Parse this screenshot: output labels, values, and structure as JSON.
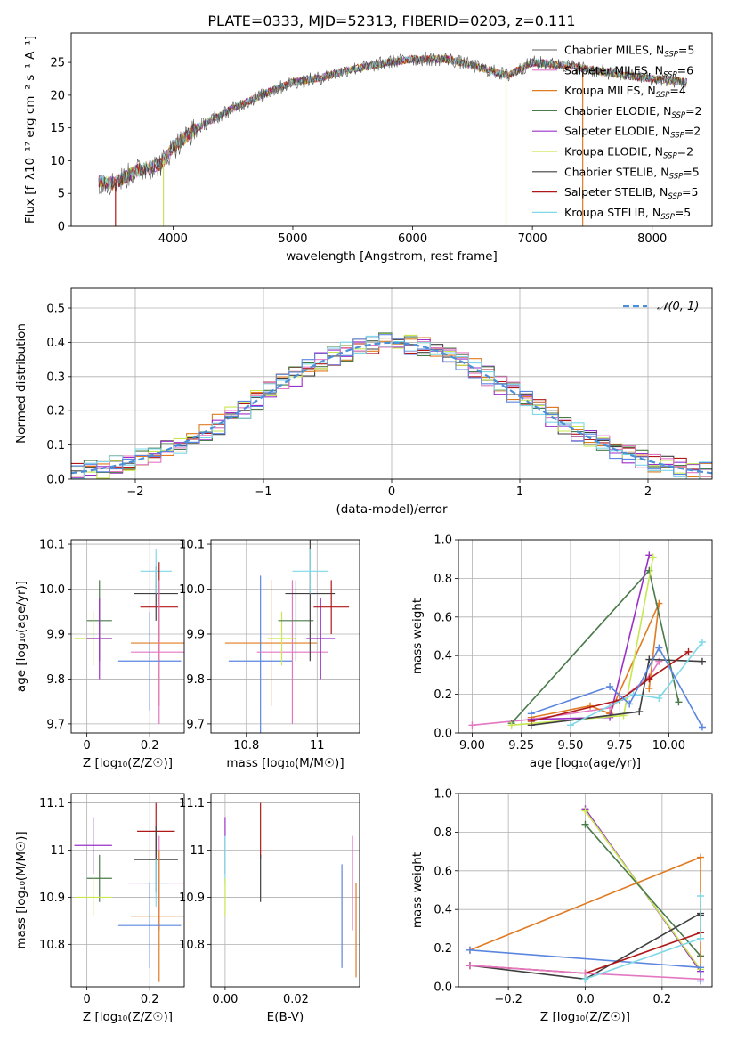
{
  "figure": {
    "title": "PLATE=0333, MJD=52313, FIBERID=0203, z=0.111",
    "colors": {
      "Chabrier MILES": "#808080",
      "Salpeter MILES": "#e377c2",
      "Kroupa MILES": "#e07b22",
      "Chabrier ELODIE": "#4a7a4a",
      "Salpeter ELODIE": "#9b30c8",
      "Kroupa ELODIE": "#c8e650",
      "Chabrier STELIB": "#404040",
      "Salpeter STELIB": "#b01818",
      "Kroupa STELIB": "#7fd8e8",
      "extra": "#5b86e0"
    }
  },
  "chart_data": [
    {
      "id": "spectrum",
      "type": "line",
      "xlabel": "wavelength [Angstrom, rest frame]",
      "ylabel": "Flux [f_λ10⁻¹⁷ erg cm⁻² s⁻¹ A⁻¹]",
      "xlim": [
        3150,
        8500
      ],
      "ylim": [
        0,
        29.5
      ],
      "xticks": [
        4000,
        5000,
        6000,
        7000,
        8000
      ],
      "yticks": [
        0,
        5,
        10,
        15,
        20,
        25
      ],
      "grid": false,
      "legend_position": "right",
      "series": [
        {
          "name": "Chabrier MILES, N_SSP=5",
          "key": "Chabrier MILES"
        },
        {
          "name": "Salpeter MILES, N_SSP=6",
          "key": "Salpeter MILES"
        },
        {
          "name": "Kroupa MILES, N_SSP=4",
          "key": "Kroupa MILES"
        },
        {
          "name": "Chabrier ELODIE, N_SSP=2",
          "key": "Chabrier ELODIE"
        },
        {
          "name": "Salpeter ELODIE, N_SSP=2",
          "key": "Salpeter ELODIE"
        },
        {
          "name": "Kroupa ELODIE, N_SSP=2",
          "key": "Kroupa ELODIE"
        },
        {
          "name": "Chabrier STELIB, N_SSP=5",
          "key": "Chabrier STELIB"
        },
        {
          "name": "Salpeter STELIB, N_SSP=5",
          "key": "Salpeter STELIB"
        },
        {
          "name": "Kroupa STELIB, N_SSP=5",
          "key": "Kroupa STELIB"
        }
      ],
      "continuum": {
        "x": [
          3350,
          3500,
          3700,
          3900,
          4000,
          4200,
          4500,
          4800,
          5000,
          5200,
          5500,
          5800,
          6000,
          6300,
          6500,
          6800,
          7000,
          7300,
          7600,
          8000,
          8300
        ],
        "y": [
          7,
          6.5,
          8.5,
          9.5,
          12,
          15,
          18,
          20.5,
          22,
          22.5,
          24,
          25,
          25.5,
          25.5,
          24.5,
          23,
          25,
          24.5,
          23.5,
          22.5,
          22
        ]
      },
      "drops": [
        {
          "x": 3520,
          "key": "Salpeter STELIB"
        },
        {
          "x": 3920,
          "key": "Kroupa ELODIE"
        },
        {
          "x": 6780,
          "key": "Kroupa ELODIE"
        },
        {
          "x": 7420,
          "key": "Kroupa MILES"
        }
      ]
    },
    {
      "id": "residuals",
      "type": "step",
      "xlabel": "(data-model)/error",
      "ylabel": "Normed distribution",
      "xlim": [
        -2.5,
        2.5
      ],
      "ylim": [
        0,
        0.56
      ],
      "xticks": [
        -2,
        -1,
        0,
        1,
        2
      ],
      "yticks": [
        0.0,
        0.1,
        0.2,
        0.3,
        0.4,
        0.5
      ],
      "grid": true,
      "legend": "𝒩(0, 1)",
      "legend_position": "top-right",
      "bin_width": 0.1
    },
    {
      "id": "age_vs_Z",
      "type": "errorbar",
      "xlabel": "Z [log₁₀(Z/Z☉)]",
      "ylabel": "age  [log₁₀(age/yr)]",
      "xlim": [
        -0.05,
        0.31
      ],
      "ylim": [
        9.68,
        10.11
      ],
      "xticks": [
        0.0,
        0.2
      ],
      "yticks": [
        9.7,
        9.8,
        9.9,
        10.0,
        10.1
      ],
      "grid": true,
      "points": [
        {
          "key": "Chabrier ELODIE",
          "x": 0.04,
          "xerr": 0.04,
          "y": 9.93,
          "yerr": 0.09
        },
        {
          "key": "Kroupa ELODIE",
          "x": 0.02,
          "xerr": 0.06,
          "y": 9.89,
          "yerr": 0.06
        },
        {
          "key": "Salpeter ELODIE",
          "x": 0.04,
          "xerr": 0.04,
          "y": 9.89,
          "yerr": 0.09
        },
        {
          "key": "Chabrier STELIB",
          "x": 0.22,
          "xerr": 0.07,
          "y": 9.99,
          "yerr": 0.06
        },
        {
          "key": "Kroupa STELIB",
          "x": 0.22,
          "xerr": 0.05,
          "y": 10.04,
          "yerr": 0.05
        },
        {
          "key": "Salpeter STELIB",
          "x": 0.23,
          "xerr": 0.06,
          "y": 9.96,
          "yerr": 0.1
        },
        {
          "key": "Kroupa MILES",
          "x": 0.23,
          "xerr": 0.09,
          "y": 9.88,
          "yerr": 0.14
        },
        {
          "key": "Salpeter MILES",
          "x": 0.23,
          "xerr": 0.09,
          "y": 9.86,
          "yerr": 0.16
        },
        {
          "key": "extra",
          "x": 0.2,
          "xerr": 0.1,
          "y": 9.84,
          "yerr": 0.11
        }
      ]
    },
    {
      "id": "age_vs_mass",
      "type": "errorbar",
      "xlabel": "mass [log₁₀(M/M☉)]",
      "ylabel": "",
      "xlim": [
        10.7,
        11.12
      ],
      "ylim": [
        9.68,
        10.11
      ],
      "xticks": [
        10.8,
        11.0
      ],
      "yticks": [
        9.7,
        9.8,
        9.9,
        10.0,
        10.1
      ],
      "grid": true,
      "points": [
        {
          "key": "Kroupa MILES",
          "x": 10.87,
          "xerr": 0.13,
          "y": 9.88,
          "yerr": 0.14
        },
        {
          "key": "extra",
          "x": 10.84,
          "xerr": 0.09,
          "y": 9.84,
          "yerr": 0.19
        },
        {
          "key": "Salpeter MILES",
          "x": 10.93,
          "xerr": 0.1,
          "y": 9.86,
          "yerr": 0.16
        },
        {
          "key": "Kroupa ELODIE",
          "x": 10.9,
          "xerr": 0.04,
          "y": 9.89,
          "yerr": 0.06
        },
        {
          "key": "Chabrier ELODIE",
          "x": 10.94,
          "xerr": 0.05,
          "y": 9.93,
          "yerr": 0.09
        },
        {
          "key": "Chabrier STELIB",
          "x": 10.98,
          "xerr": 0.07,
          "y": 9.99,
          "yerr": 0.15
        },
        {
          "key": "Kroupa STELIB",
          "x": 10.98,
          "xerr": 0.05,
          "y": 10.04,
          "yerr": 0.05
        },
        {
          "key": "Salpeter ELODIE",
          "x": 11.01,
          "xerr": 0.04,
          "y": 9.89,
          "yerr": 0.09
        },
        {
          "key": "Salpeter STELIB",
          "x": 11.04,
          "xerr": 0.05,
          "y": 9.96,
          "yerr": 0.06
        }
      ]
    },
    {
      "id": "weight_vs_age",
      "type": "line",
      "xlabel": "age  [log₁₀(age/yr)]",
      "ylabel": "mass weight",
      "xlim": [
        8.93,
        10.22
      ],
      "ylim": [
        0,
        1
      ],
      "xticks": [
        9.0,
        9.25,
        9.5,
        9.75,
        10.0
      ],
      "xtick_labels": [
        "9.00",
        "9.25",
        "9.50",
        "9.75",
        "10.00"
      ],
      "yticks": [
        0.0,
        0.2,
        0.4,
        0.6,
        0.8,
        1.0
      ],
      "grid": true,
      "series": [
        {
          "key": "Salpeter MILES",
          "x": [
            9.0,
            9.3,
            9.7,
            9.9,
            9.95
          ],
          "y": [
            0.04,
            0.07,
            0.13,
            0.29,
            0.37
          ]
        },
        {
          "key": "Kroupa MILES",
          "x": [
            9.3,
            9.6,
            9.7,
            9.95,
            9.9
          ],
          "y": [
            0.08,
            0.14,
            0.1,
            0.67,
            0.23
          ]
        },
        {
          "key": "Chabrier ELODIE",
          "x": [
            9.2,
            9.9,
            10.05
          ],
          "y": [
            0.05,
            0.84,
            0.16
          ]
        },
        {
          "key": "Salpeter ELODIE",
          "x": [
            9.3,
            9.7,
            9.9
          ],
          "y": [
            0.07,
            0.08,
            0.92
          ]
        },
        {
          "key": "Kroupa ELODIE",
          "x": [
            9.2,
            9.77,
            9.92
          ],
          "y": [
            0.04,
            0.09,
            0.91
          ]
        },
        {
          "key": "Chabrier STELIB",
          "x": [
            9.3,
            9.85,
            9.9,
            10.17
          ],
          "y": [
            0.04,
            0.11,
            0.38,
            0.37
          ]
        },
        {
          "key": "Salpeter STELIB",
          "x": [
            9.3,
            9.75,
            9.9,
            10.1
          ],
          "y": [
            0.06,
            0.17,
            0.28,
            0.42
          ]
        },
        {
          "key": "Kroupa STELIB",
          "x": [
            9.5,
            9.82,
            9.95,
            10.17
          ],
          "y": [
            0.04,
            0.2,
            0.18,
            0.47
          ]
        },
        {
          "key": "extra",
          "x": [
            9.3,
            9.7,
            9.8,
            9.95,
            10.17
          ],
          "y": [
            0.1,
            0.24,
            0.15,
            0.44,
            0.03
          ]
        }
      ]
    },
    {
      "id": "mass_vs_Z",
      "type": "errorbar",
      "xlabel": "Z [log₁₀(Z/Z☉)]",
      "ylabel": "mass [log₁₀(M/M☉)]",
      "xlim": [
        -0.05,
        0.31
      ],
      "ylim": [
        10.71,
        11.12
      ],
      "xticks": [
        0.0,
        0.2
      ],
      "yticks": [
        10.8,
        10.9,
        11.0,
        11.1
      ],
      "grid": true,
      "points": [
        {
          "key": "Salpeter ELODIE",
          "x": 0.02,
          "xerr": 0.06,
          "y": 11.01,
          "yerr": 0.06
        },
        {
          "key": "Chabrier ELODIE",
          "x": 0.04,
          "xerr": 0.04,
          "y": 10.94,
          "yerr": 0.05
        },
        {
          "key": "Kroupa ELODIE",
          "x": 0.02,
          "xerr": 0.06,
          "y": 10.9,
          "yerr": 0.04
        },
        {
          "key": "Salpeter STELIB",
          "x": 0.22,
          "xerr": 0.06,
          "y": 11.04,
          "yerr": 0.06
        },
        {
          "key": "Chabrier STELIB",
          "x": 0.22,
          "xerr": 0.07,
          "y": 10.98,
          "yerr": 0.07
        },
        {
          "key": "Salpeter MILES",
          "x": 0.23,
          "xerr": 0.1,
          "y": 10.93,
          "yerr": 0.1
        },
        {
          "key": "Kroupa MILES",
          "x": 0.23,
          "xerr": 0.09,
          "y": 10.86,
          "yerr": 0.14
        },
        {
          "key": "Kroupa STELIB",
          "x": 0.22,
          "xerr": 0.04,
          "y": 10.93,
          "yerr": 0.05
        },
        {
          "key": "extra",
          "x": 0.2,
          "xerr": 0.1,
          "y": 10.84,
          "yerr": 0.09
        }
      ]
    },
    {
      "id": "mass_vs_ebv",
      "type": "errorbar",
      "xlabel": "E(B-V)",
      "ylabel": "",
      "xlim": [
        -0.004,
        0.038
      ],
      "ylim": [
        10.71,
        11.12
      ],
      "xticks": [
        0.0,
        0.02
      ],
      "xtick_labels": [
        "0.00",
        "0.02"
      ],
      "yticks": [
        10.8,
        10.9,
        11.0,
        11.1
      ],
      "grid": true,
      "points": [
        {
          "key": "Salpeter ELODIE",
          "x": 0.0,
          "xerr": 0,
          "y": 11.01,
          "yerr": 0.06
        },
        {
          "key": "Kroupa STELIB",
          "x": 0.0,
          "xerr": 0,
          "y": 10.98,
          "yerr": 0.05
        },
        {
          "key": "Kroupa ELODIE",
          "x": 0.0,
          "xerr": 0,
          "y": 10.9,
          "yerr": 0.04
        },
        {
          "key": "Salpeter STELIB",
          "x": 0.01,
          "xerr": 0,
          "y": 11.04,
          "yerr": 0.06
        },
        {
          "key": "Chabrier STELIB",
          "x": 0.01,
          "xerr": 0,
          "y": 10.94,
          "yerr": 0.05
        },
        {
          "key": "extra",
          "x": 0.033,
          "xerr": 0,
          "y": 10.86,
          "yerr": 0.11
        },
        {
          "key": "Salpeter MILES",
          "x": 0.036,
          "xerr": 0,
          "y": 10.93,
          "yerr": 0.1
        },
        {
          "key": "Kroupa MILES",
          "x": 0.037,
          "xerr": 0,
          "y": 10.83,
          "yerr": 0.1
        }
      ]
    },
    {
      "id": "weight_vs_Z",
      "type": "line",
      "xlabel": "Z [log₁₀(Z/Z☉)]",
      "ylabel": "mass weight",
      "xlim": [
        -0.33,
        0.33
      ],
      "ylim": [
        0,
        1
      ],
      "xticks": [
        -0.2,
        0.0,
        0.2
      ],
      "xtick_labels": [
        "−0.2",
        "0.0",
        "0.2"
      ],
      "yticks": [
        0.0,
        0.2,
        0.4,
        0.6,
        0.8,
        1.0
      ],
      "grid": true,
      "series": [
        {
          "key": "Salpeter ELODIE",
          "x": [
            0.0,
            0.3
          ],
          "y": [
            0.92,
            0.08
          ]
        },
        {
          "key": "Kroupa ELODIE",
          "x": [
            0.0,
            0.3
          ],
          "y": [
            0.91,
            0.09
          ]
        },
        {
          "key": "Chabrier ELODIE",
          "x": [
            0.0,
            0.3
          ],
          "y": [
            0.84,
            0.16
          ]
        },
        {
          "key": "Kroupa MILES",
          "x": [
            -0.3,
            0.3,
            0.3
          ],
          "y": [
            0.19,
            0.67,
            0.1
          ]
        },
        {
          "key": "extra",
          "x": [
            -0.3,
            0.3,
            0.3
          ],
          "y": [
            0.19,
            0.1,
            0.03
          ]
        },
        {
          "key": "Chabrier STELIB",
          "x": [
            -0.3,
            0.0,
            0.3,
            0.3
          ],
          "y": [
            0.11,
            0.04,
            0.38,
            0.37
          ]
        },
        {
          "key": "Salpeter STELIB",
          "x": [
            -0.3,
            0.0,
            0.3
          ],
          "y": [
            0.11,
            0.07,
            0.28
          ]
        },
        {
          "key": "Salpeter MILES",
          "x": [
            -0.3,
            0.0,
            0.3
          ],
          "y": [
            0.11,
            0.07,
            0.04
          ]
        },
        {
          "key": "Kroupa STELIB",
          "x": [
            0.0,
            0.3,
            0.3
          ],
          "y": [
            0.04,
            0.25,
            0.47
          ]
        }
      ]
    }
  ]
}
